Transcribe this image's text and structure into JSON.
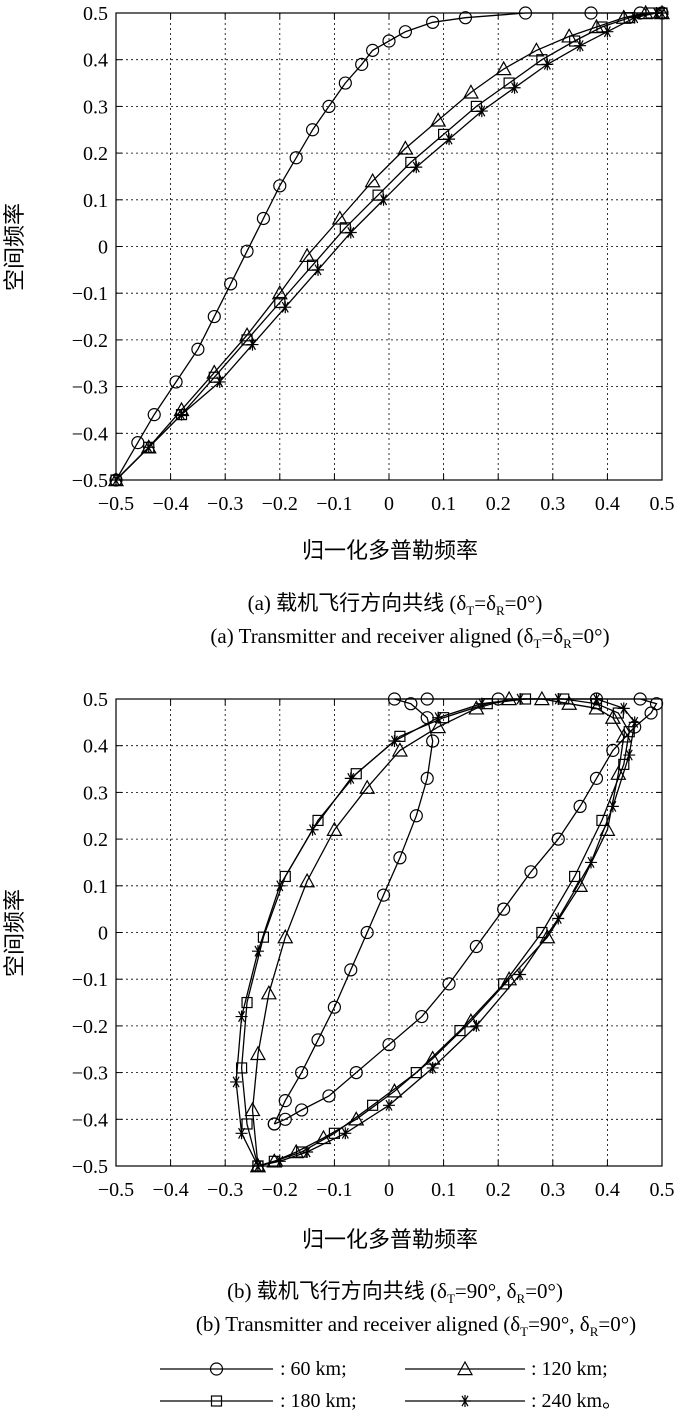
{
  "chart_data": [
    {
      "type": "line",
      "id": "a",
      "xlabel": "归一化多普勒频率",
      "ylabel": "空间频率",
      "xlim": [
        -0.5,
        0.5
      ],
      "ylim": [
        -0.5,
        0.5
      ],
      "xticks": [
        "-0.5",
        "-0.4",
        "-0.3",
        "-0.2",
        "-0.1",
        "0",
        "0.1",
        "0.2",
        "0.3",
        "0.4",
        "0.5"
      ],
      "yticks": [
        "-0.5",
        "-0.4",
        "-0.3",
        "-0.2",
        "-0.1",
        "0",
        "0.1",
        "0.2",
        "0.3",
        "0.4",
        "0.5"
      ],
      "grid": true,
      "caption_zh": "(a) 载机飞行方向共线 (δ",
      "caption_zh_sub1": "T",
      "caption_zh_mid": "=δ",
      "caption_zh_sub2": "R",
      "caption_zh_end": "=0°)",
      "caption_en": "(a) Transmitter and receiver aligned (δ",
      "caption_en_sub1": "T",
      "caption_en_mid": "=δ",
      "caption_en_sub2": "R",
      "caption_en_end": "=0°)",
      "series": [
        {
          "name": "60 km",
          "marker": "circle",
          "x": [
            -0.5,
            -0.46,
            -0.43,
            -0.39,
            -0.35,
            -0.32,
            -0.29,
            -0.26,
            -0.23,
            -0.2,
            -0.17,
            -0.14,
            -0.11,
            -0.08,
            -0.05,
            -0.03,
            0.0,
            0.03,
            0.08,
            0.14,
            0.25,
            0.37,
            0.46,
            0.5
          ],
          "y": [
            -0.5,
            -0.42,
            -0.36,
            -0.29,
            -0.22,
            -0.15,
            -0.08,
            -0.01,
            0.06,
            0.13,
            0.19,
            0.25,
            0.3,
            0.35,
            0.39,
            0.42,
            0.44,
            0.46,
            0.48,
            0.49,
            0.5,
            0.5,
            0.5,
            0.5
          ]
        },
        {
          "name": "120 km",
          "marker": "triangle",
          "x": [
            -0.5,
            -0.44,
            -0.38,
            -0.32,
            -0.26,
            -0.2,
            -0.15,
            -0.09,
            -0.03,
            0.03,
            0.09,
            0.15,
            0.21,
            0.27,
            0.33,
            0.38,
            0.43,
            0.47,
            0.5
          ],
          "y": [
            -0.5,
            -0.43,
            -0.35,
            -0.27,
            -0.19,
            -0.1,
            -0.02,
            0.06,
            0.14,
            0.21,
            0.27,
            0.33,
            0.38,
            0.42,
            0.45,
            0.47,
            0.49,
            0.5,
            0.5
          ]
        },
        {
          "name": "180 km",
          "marker": "square",
          "x": [
            -0.5,
            -0.44,
            -0.38,
            -0.32,
            -0.26,
            -0.2,
            -0.14,
            -0.08,
            -0.02,
            0.04,
            0.1,
            0.16,
            0.22,
            0.28,
            0.34,
            0.39,
            0.44,
            0.48,
            0.5
          ],
          "y": [
            -0.5,
            -0.43,
            -0.36,
            -0.28,
            -0.2,
            -0.12,
            -0.04,
            0.04,
            0.11,
            0.18,
            0.24,
            0.3,
            0.35,
            0.4,
            0.44,
            0.47,
            0.49,
            0.5,
            0.5
          ]
        },
        {
          "name": "240 km",
          "marker": "star",
          "x": [
            -0.5,
            -0.44,
            -0.38,
            -0.31,
            -0.25,
            -0.19,
            -0.13,
            -0.07,
            -0.01,
            0.05,
            0.11,
            0.17,
            0.23,
            0.29,
            0.35,
            0.4,
            0.45,
            0.49,
            0.5
          ],
          "y": [
            -0.5,
            -0.43,
            -0.36,
            -0.29,
            -0.21,
            -0.13,
            -0.05,
            0.03,
            0.1,
            0.17,
            0.23,
            0.29,
            0.34,
            0.39,
            0.43,
            0.46,
            0.49,
            0.5,
            0.5
          ]
        }
      ]
    },
    {
      "type": "line",
      "id": "b",
      "xlabel": "归一化多普勒频率",
      "ylabel": "空间频率",
      "xlim": [
        -0.5,
        0.5
      ],
      "ylim": [
        -0.5,
        0.5
      ],
      "xticks": [
        "-0.5",
        "-0.4",
        "-0.3",
        "-0.2",
        "-0.1",
        "0",
        "0.1",
        "0.2",
        "0.3",
        "0.4",
        "0.5"
      ],
      "yticks": [
        "-0.5",
        "-0.4",
        "-0.3",
        "-0.2",
        "-0.1",
        "0",
        "0.1",
        "0.2",
        "0.3",
        "0.4",
        "0.5"
      ],
      "grid": true,
      "caption_zh": "(b) 载机飞行方向共线 (δ",
      "caption_zh_sub1": "T",
      "caption_zh_mid": "=90°, δ",
      "caption_zh_sub2": "R",
      "caption_zh_end": "=0°)",
      "caption_en": "(b) Transmitter and receiver aligned (δ",
      "caption_en_sub1": "T",
      "caption_en_mid": "=90°, δ",
      "caption_en_sub2": "R",
      "caption_en_end": "=0°)",
      "series": [
        {
          "name": "60 km",
          "marker": "circle",
          "x": [
            -0.21,
            -0.19,
            -0.16,
            -0.13,
            -0.1,
            -0.07,
            -0.04,
            -0.01,
            0.02,
            0.05,
            0.07,
            0.08,
            0.07,
            0.04,
            0.01,
            0.07,
            0.2,
            0.38,
            0.46,
            0.49,
            0.48,
            0.45,
            0.41,
            0.38,
            0.35,
            0.31,
            0.26,
            0.21,
            0.16,
            0.11,
            0.06,
            0.0,
            -0.06,
            -0.11,
            -0.16,
            -0.19,
            -0.21
          ],
          "y": [
            -0.41,
            -0.36,
            -0.3,
            -0.23,
            -0.16,
            -0.08,
            0.0,
            0.08,
            0.16,
            0.25,
            0.33,
            0.41,
            0.46,
            0.49,
            0.5,
            0.5,
            0.5,
            0.5,
            0.5,
            0.49,
            0.47,
            0.44,
            0.39,
            0.33,
            0.27,
            0.2,
            0.13,
            0.05,
            -0.03,
            -0.11,
            -0.18,
            -0.24,
            -0.3,
            -0.35,
            -0.38,
            -0.4,
            -0.41
          ]
        },
        {
          "name": "120 km",
          "marker": "triangle",
          "x": [
            -0.24,
            -0.21,
            -0.17,
            -0.12,
            -0.06,
            0.01,
            0.08,
            0.15,
            0.22,
            0.29,
            0.35,
            0.4,
            0.42,
            0.43,
            0.41,
            0.38,
            0.33,
            0.28,
            0.22,
            0.16,
            0.09,
            0.02,
            -0.04,
            -0.1,
            -0.15,
            -0.19,
            -0.22,
            -0.24,
            -0.25,
            -0.24
          ],
          "y": [
            -0.5,
            -0.49,
            -0.47,
            -0.44,
            -0.4,
            -0.34,
            -0.27,
            -0.19,
            -0.1,
            -0.01,
            0.1,
            0.22,
            0.34,
            0.42,
            0.46,
            0.48,
            0.49,
            0.5,
            0.5,
            0.48,
            0.44,
            0.39,
            0.31,
            0.22,
            0.11,
            -0.01,
            -0.13,
            -0.26,
            -0.38,
            -0.5
          ]
        },
        {
          "name": "180 km",
          "marker": "square",
          "x": [
            -0.24,
            -0.21,
            -0.16,
            -0.1,
            -0.03,
            0.05,
            0.13,
            0.21,
            0.28,
            0.34,
            0.39,
            0.43,
            0.44,
            0.42,
            0.38,
            0.32,
            0.25,
            0.18,
            0.1,
            0.02,
            -0.06,
            -0.13,
            -0.19,
            -0.23,
            -0.26,
            -0.27,
            -0.26,
            -0.24
          ],
          "y": [
            -0.5,
            -0.49,
            -0.47,
            -0.43,
            -0.37,
            -0.3,
            -0.21,
            -0.11,
            0.0,
            0.12,
            0.24,
            0.36,
            0.43,
            0.47,
            0.49,
            0.5,
            0.5,
            0.49,
            0.46,
            0.42,
            0.34,
            0.24,
            0.12,
            -0.01,
            -0.15,
            -0.29,
            -0.41,
            -0.5
          ]
        },
        {
          "name": "240 km",
          "marker": "star",
          "x": [
            -0.24,
            -0.2,
            -0.15,
            -0.08,
            0.0,
            0.08,
            0.16,
            0.24,
            0.31,
            0.37,
            0.41,
            0.44,
            0.45,
            0.43,
            0.38,
            0.31,
            0.24,
            0.17,
            0.09,
            0.01,
            -0.07,
            -0.14,
            -0.2,
            -0.24,
            -0.27,
            -0.28,
            -0.27,
            -0.24
          ],
          "y": [
            -0.5,
            -0.49,
            -0.47,
            -0.43,
            -0.37,
            -0.29,
            -0.2,
            -0.09,
            0.03,
            0.15,
            0.27,
            0.38,
            0.45,
            0.48,
            0.5,
            0.5,
            0.5,
            0.49,
            0.46,
            0.41,
            0.33,
            0.22,
            0.1,
            -0.04,
            -0.18,
            -0.32,
            -0.43,
            -0.5
          ]
        }
      ]
    }
  ],
  "legend": {
    "items": [
      {
        "label": ": 60 km;",
        "marker": "circle"
      },
      {
        "label": ": 120 km;",
        "marker": "triangle"
      },
      {
        "label": ": 180 km;",
        "marker": "square"
      },
      {
        "label": ": 240 km。",
        "marker": "star"
      }
    ]
  }
}
